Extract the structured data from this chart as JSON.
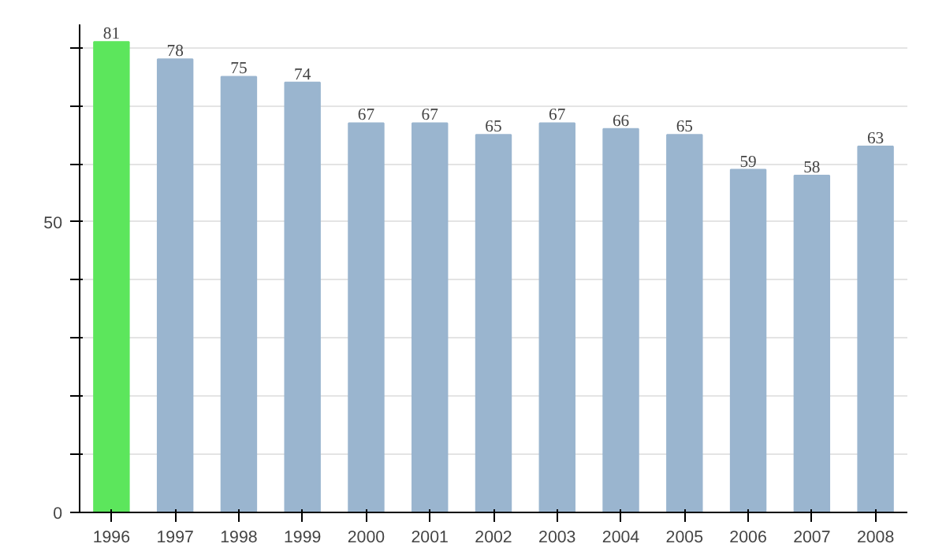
{
  "chart_data": {
    "type": "bar",
    "categories": [
      "1996",
      "1997",
      "1998",
      "1999",
      "2000",
      "2001",
      "2002",
      "2003",
      "2004",
      "2005",
      "2006",
      "2007",
      "2008"
    ],
    "values": [
      81,
      78,
      75,
      74,
      67,
      67,
      65,
      67,
      66,
      65,
      59,
      58,
      63
    ],
    "colors": [
      "#5ce65c",
      "#9ab5cf",
      "#9ab5cf",
      "#9ab5cf",
      "#9ab5cf",
      "#9ab5cf",
      "#9ab5cf",
      "#9ab5cf",
      "#9ab5cf",
      "#9ab5cf",
      "#9ab5cf",
      "#9ab5cf",
      "#9ab5cf"
    ],
    "ylim": [
      0,
      84
    ],
    "yticks": [
      0,
      {
        "value": 10,
        "label": null
      },
      {
        "value": 20,
        "label": null
      },
      {
        "value": 30,
        "label": null
      },
      {
        "value": 40,
        "label": null
      },
      50,
      {
        "value": 60,
        "label": null
      },
      {
        "value": 70,
        "label": null
      },
      {
        "value": 80,
        "label": null
      }
    ],
    "grid": "y",
    "data_labels": true
  }
}
